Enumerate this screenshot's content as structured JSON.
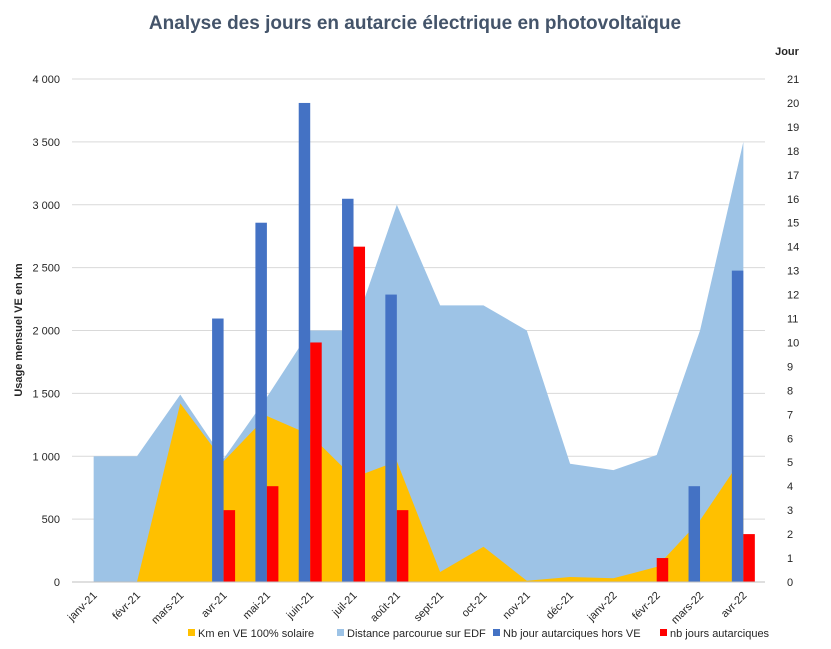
{
  "chart_data": {
    "type": "bar",
    "title": "Analyse des jours  en autarcie électrique  en photovoltaïque",
    "ylabel": "Usage  mensuel VE en km",
    "y2label": "Jour",
    "ylim": [
      0,
      4000
    ],
    "y2lim": [
      0,
      21
    ],
    "y_ticks": [
      "0",
      "500",
      "1 000",
      "1 500",
      "2 000",
      "2 500",
      "3 000",
      "3 500",
      "4 000"
    ],
    "y2_ticks": [
      "0",
      "1",
      "2",
      "3",
      "4",
      "5",
      "6",
      "7",
      "8",
      "9",
      "10",
      "11",
      "12",
      "13",
      "14",
      "15",
      "16",
      "17",
      "18",
      "19",
      "20",
      "21"
    ],
    "categories": [
      "janv-21",
      "févr-21",
      "mars-21",
      "avr-21",
      "mai-21",
      "juin-21",
      "juil-21",
      "août-21",
      "sept-21",
      "oct-21",
      "nov-21",
      "déc-21",
      "janv-22",
      "févr-22",
      "mars-22",
      "avr-22"
    ],
    "series": [
      {
        "name": "Km en VE 100% solaire",
        "kind": "area",
        "axis": "left",
        "color": "#ffc000",
        "values": [
          0,
          0,
          1420,
          960,
          1320,
          1170,
          830,
          960,
          80,
          280,
          10,
          40,
          30,
          120,
          490,
          1000
        ]
      },
      {
        "name": "Distance parcourue sur EDF",
        "kind": "area",
        "axis": "left",
        "color": "#9dc3e6",
        "values": [
          1000,
          1000,
          1490,
          980,
          1470,
          2000,
          2000,
          3000,
          2200,
          2200,
          2000,
          940,
          890,
          1010,
          2000,
          3500
        ]
      },
      {
        "name": "Nb jour autarciques hors VE",
        "kind": "bar",
        "axis": "right",
        "color": "#4472c4",
        "values": [
          0,
          0,
          0,
          11,
          15,
          20,
          16,
          12,
          0,
          0,
          0,
          0,
          0,
          0,
          4,
          13
        ]
      },
      {
        "name": "nb jours autarciques",
        "kind": "bar",
        "axis": "right",
        "color": "#ff0000",
        "values": [
          0,
          0,
          0,
          3,
          4,
          10,
          14,
          3,
          0,
          0,
          0,
          0,
          0,
          1,
          0,
          2
        ]
      }
    ],
    "grid": true,
    "legend_position": "bottom"
  }
}
